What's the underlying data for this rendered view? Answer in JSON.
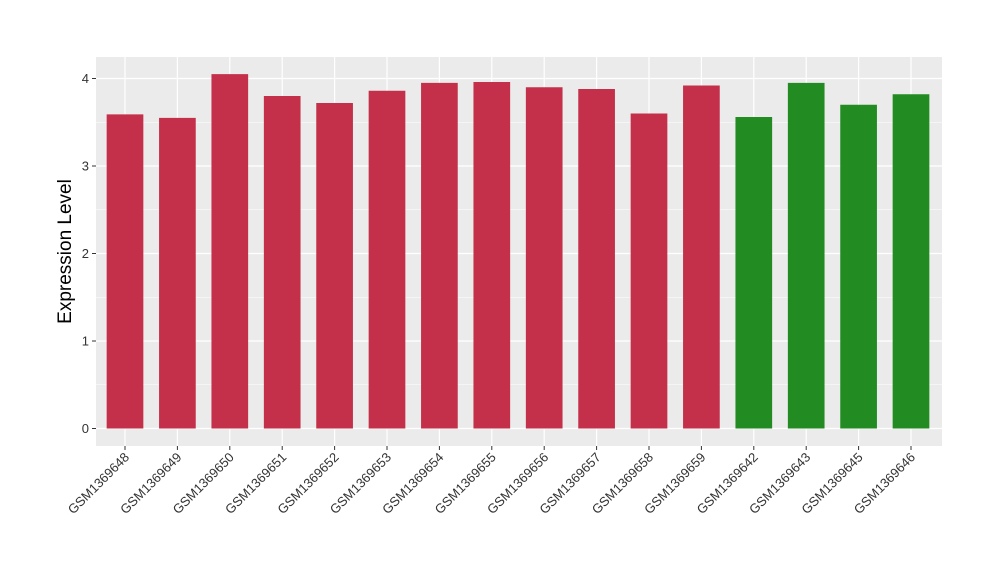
{
  "chart_data": {
    "type": "bar",
    "title": "",
    "xlabel": "",
    "ylabel": "Expression Level",
    "ylim": [
      0,
      4.2
    ],
    "yticks": [
      0,
      1,
      2,
      3,
      4
    ],
    "grid": true,
    "categories": [
      "GSM1369648",
      "GSM1369649",
      "GSM1369650",
      "GSM1369651",
      "GSM1369652",
      "GSM1369653",
      "GSM1369654",
      "GSM1369655",
      "GSM1369656",
      "GSM1369657",
      "GSM1369658",
      "GSM1369659",
      "GSM1369642",
      "GSM1369643",
      "GSM1369645",
      "GSM1369646"
    ],
    "values": [
      3.59,
      3.55,
      4.05,
      3.8,
      3.72,
      3.86,
      3.95,
      3.96,
      3.9,
      3.88,
      3.6,
      3.92,
      3.56,
      3.95,
      3.7,
      3.82
    ],
    "groups": [
      "red",
      "red",
      "red",
      "red",
      "red",
      "red",
      "red",
      "red",
      "red",
      "red",
      "red",
      "red",
      "green",
      "green",
      "green",
      "green"
    ],
    "colors": {
      "red": "#C43049",
      "green": "#228B22",
      "panel": "#EBEBEB",
      "grid": "#FFFFFF"
    }
  }
}
